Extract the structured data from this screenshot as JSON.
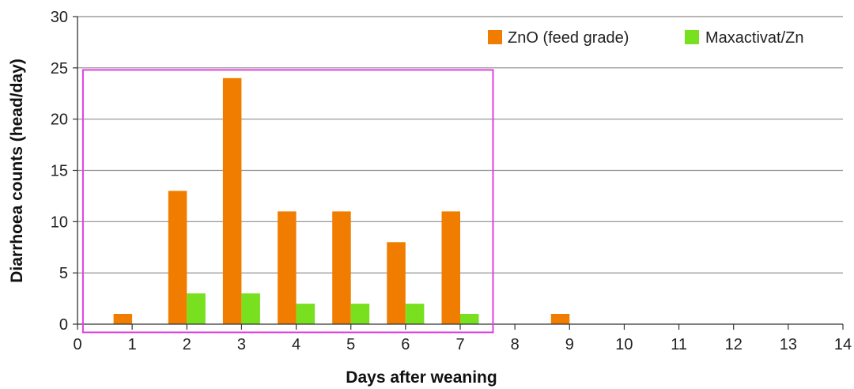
{
  "chart_data": {
    "type": "bar",
    "title": "",
    "xlabel": "Days after weaning",
    "ylabel": "Diarrhoea counts (head/day)",
    "xlim": [
      0,
      14
    ],
    "ylim": [
      0,
      30
    ],
    "x_ticks": [
      "0",
      "1",
      "2",
      "3",
      "4",
      "5",
      "6",
      "7",
      "8",
      "9",
      "10",
      "11",
      "12",
      "13",
      "14"
    ],
    "y_ticks": [
      "0",
      "5",
      "10",
      "15",
      "20",
      "25",
      "30"
    ],
    "categories": [
      1,
      2,
      3,
      4,
      5,
      6,
      7,
      8,
      9
    ],
    "series": [
      {
        "name": "ZnO (feed grade)",
        "color": "#f07d00",
        "values": [
          1,
          13,
          24,
          11,
          11,
          8,
          11,
          0,
          1
        ]
      },
      {
        "name": "Maxactivat/Zn",
        "color": "#78e01e",
        "values": [
          0,
          3,
          3,
          2,
          2,
          2,
          1,
          0,
          0
        ]
      }
    ],
    "grid": true,
    "legend_position": "top-right",
    "highlight_box": {
      "color": "#e040e0",
      "x_range": [
        0.1,
        7.6
      ],
      "y_range": [
        -0.8,
        24.8
      ]
    }
  }
}
